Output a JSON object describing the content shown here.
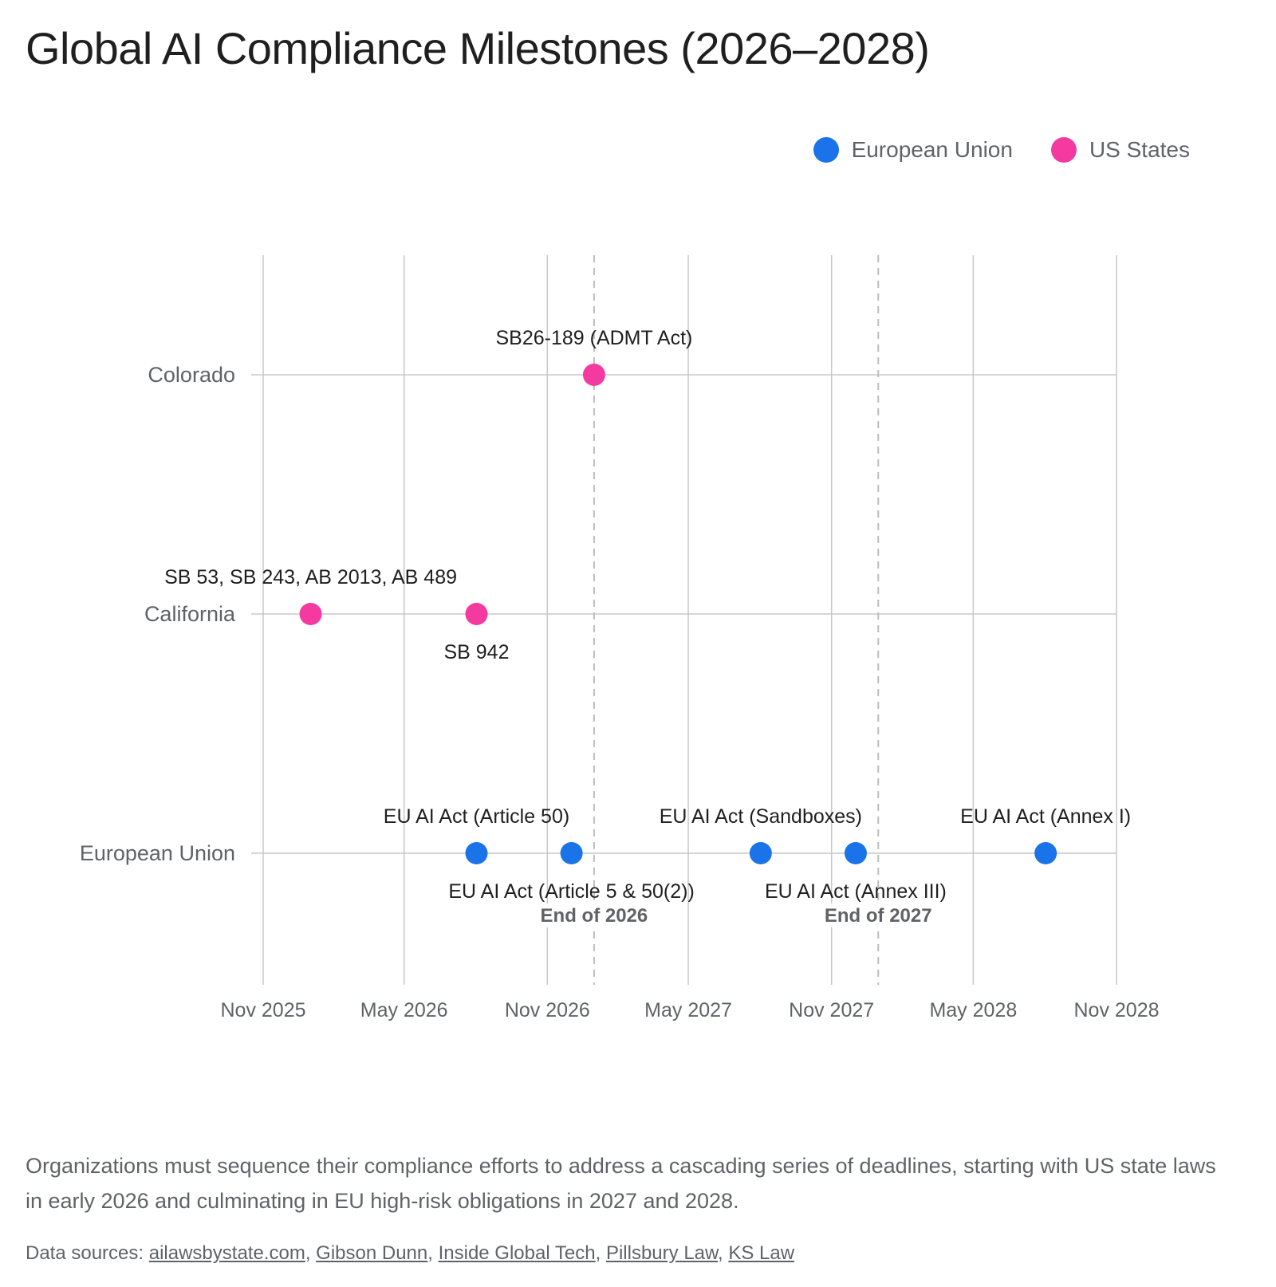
{
  "chart_data": {
    "type": "scatter",
    "title": "Global AI Compliance Milestones (2026–2028)",
    "x_axis": {
      "type": "date",
      "range": [
        "2025-11-01",
        "2028-11-01"
      ],
      "ticks": [
        {
          "date": "2025-11-01",
          "label": "Nov 2025"
        },
        {
          "date": "2026-05-01",
          "label": "May 2026"
        },
        {
          "date": "2026-11-01",
          "label": "Nov 2026"
        },
        {
          "date": "2027-05-01",
          "label": "May 2027"
        },
        {
          "date": "2027-11-01",
          "label": "Nov 2027"
        },
        {
          "date": "2028-05-01",
          "label": "May 2028"
        },
        {
          "date": "2028-11-01",
          "label": "Nov 2028"
        }
      ],
      "grid": true
    },
    "y_axis": {
      "type": "category",
      "categories": [
        "Colorado",
        "California",
        "European Union"
      ]
    },
    "legend": {
      "placement": "top-right",
      "entries": [
        {
          "name": "European Union",
          "color": "#1a73e8"
        },
        {
          "name": "US States",
          "color": "#f439a0"
        }
      ]
    },
    "reference_lines": [
      {
        "date": "2026-12-31",
        "label": "End of 2026"
      },
      {
        "date": "2027-12-31",
        "label": "End of 2027"
      }
    ],
    "series": [
      {
        "name": "US States",
        "color": "#f439a0",
        "points": [
          {
            "row": "Colorado",
            "date": "2026-12-31",
            "label": "SB26-189 (ADMT Act)",
            "label_position": "above"
          },
          {
            "row": "California",
            "date": "2026-01-01",
            "label": "SB 53, SB 243, AB 2013, AB 489",
            "label_position": "above"
          },
          {
            "row": "California",
            "date": "2026-08-02",
            "label": "SB 942",
            "label_position": "below"
          }
        ]
      },
      {
        "name": "European Union",
        "color": "#1a73e8",
        "points": [
          {
            "row": "European Union",
            "date": "2026-08-02",
            "label": "EU AI Act (Article 50)",
            "label_position": "above"
          },
          {
            "row": "European Union",
            "date": "2026-12-02",
            "label": "EU AI Act (Article 5 & 50(2))",
            "label_position": "below"
          },
          {
            "row": "European Union",
            "date": "2027-08-02",
            "label": "EU AI Act (Sandboxes)",
            "label_position": "above"
          },
          {
            "row": "European Union",
            "date": "2027-12-02",
            "label": "EU AI Act (Annex III)",
            "label_position": "below"
          },
          {
            "row": "European Union",
            "date": "2028-08-02",
            "label": "EU AI Act (Annex I)",
            "label_position": "above"
          }
        ]
      }
    ]
  },
  "caption": "Organizations must sequence their compliance efforts to address a cascading series of deadlines, starting with US state laws in early 2026 and culminating in EU high-risk obligations in 2027 and 2028.",
  "sources": {
    "prefix": "Data sources: ",
    "links": [
      "ailawsbystate.com",
      "Gibson Dunn",
      "Inside Global Tech",
      "Pillsbury Law",
      "KS Law"
    ]
  }
}
